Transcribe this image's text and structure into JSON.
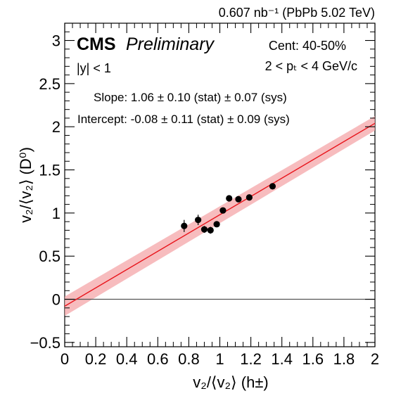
{
  "chart_data": {
    "type": "scatter",
    "header": "0.607 nb⁻¹ (PbPb 5.02 TeV)",
    "experiment": "CMS",
    "status": "Preliminary",
    "rapidity_cut": "|y| < 1",
    "centrality": "Cent: 40-50%",
    "pt_range": "2 < pₜ < 4 GeV/c",
    "slope_text": "Slope: 1.06 ± 0.10 (stat) ± 0.07 (sys)",
    "intercept_text": "Intercept: -0.08 ± 0.11 (stat) ± 0.09 (sys)",
    "xlabel": "v₂/⟨v₂⟩ (h±)",
    "ylabel": "v₂/⟨v₂⟩ (D⁰)",
    "xlim": [
      0,
      2
    ],
    "ylim": [
      -0.55,
      3.2
    ],
    "x_ticks": [
      "0",
      "0.2",
      "0.4",
      "0.6",
      "0.8",
      "1",
      "1.2",
      "1.4",
      "1.6",
      "1.8",
      "2"
    ],
    "y_ticks": [
      "−0.5",
      "0",
      "0.5",
      "1",
      "1.5",
      "2",
      "2.5",
      "3"
    ],
    "fit": {
      "slope": 1.06,
      "intercept": -0.08,
      "band_halfwidth": 0.07,
      "color": "#e8141b",
      "band_color": "#f4a6a8"
    },
    "zero_line": {
      "y": 0,
      "color": "#555555"
    },
    "points": [
      {
        "x": 0.77,
        "y": 0.85,
        "err": 0.07
      },
      {
        "x": 0.86,
        "y": 0.92,
        "err": 0.06
      },
      {
        "x": 0.9,
        "y": 0.81,
        "err": 0.04
      },
      {
        "x": 0.94,
        "y": 0.8,
        "err": 0.04
      },
      {
        "x": 0.98,
        "y": 0.87,
        "err": 0.03
      },
      {
        "x": 1.02,
        "y": 1.03,
        "err": 0.03
      },
      {
        "x": 1.06,
        "y": 1.17,
        "err": 0.03
      },
      {
        "x": 1.12,
        "y": 1.16,
        "err": 0.03
      },
      {
        "x": 1.19,
        "y": 1.18,
        "err": 0.03
      },
      {
        "x": 1.34,
        "y": 1.31,
        "err": 0.03
      }
    ]
  }
}
